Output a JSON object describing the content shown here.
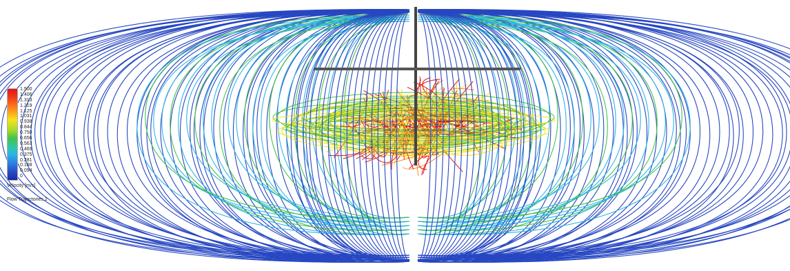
{
  "legend": {
    "ticks": [
      "1.500",
      "1.406",
      "1.313",
      "1.219",
      "1.125",
      "1.031",
      "0.938",
      "0.844",
      "0.750",
      "0.656",
      "0.563",
      "0.469",
      "0.375",
      "0.281",
      "0.188",
      "0.094",
      "0"
    ],
    "quantity_label": "Velocity [m/s]",
    "plot_label": "Flow Trajectories 2"
  },
  "colors": {
    "high": "#e0141a",
    "upper": "#ff8a1c",
    "mid": "#f7e11c",
    "green": "#45c24a",
    "cyan": "#2db4e6",
    "low": "#2747c2",
    "background": "#ffffff"
  }
}
